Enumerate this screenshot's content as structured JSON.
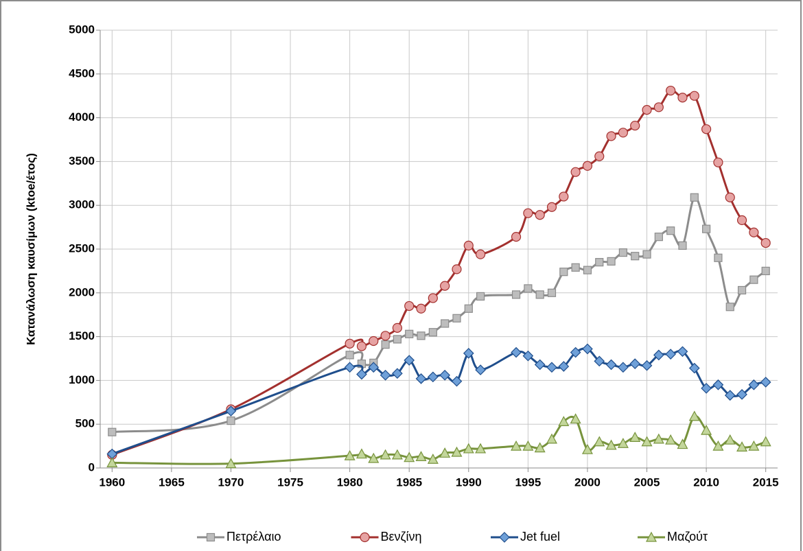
{
  "chart_data": {
    "type": "line",
    "y_label": "Κατανάλωση καυσίμων (ktoe/έτος)",
    "x": [
      1960,
      1970,
      1980,
      1981,
      1982,
      1983,
      1984,
      1985,
      1986,
      1987,
      1988,
      1989,
      1990,
      1991,
      1994,
      1995,
      1996,
      1997,
      1998,
      1999,
      2000,
      2001,
      2002,
      2003,
      2004,
      2005,
      2006,
      2007,
      2008,
      2009,
      2010,
      2011,
      2012,
      2013,
      2014,
      2015
    ],
    "xlim": [
      1959,
      2016
    ],
    "xticks": [
      1960,
      1965,
      1970,
      1975,
      1980,
      1985,
      1990,
      1995,
      2000,
      2005,
      2010,
      2015
    ],
    "ylim": [
      0,
      5000
    ],
    "yticks": [
      0,
      500,
      1000,
      1500,
      2000,
      2500,
      3000,
      3500,
      4000,
      4500,
      5000
    ],
    "grid": true,
    "legend": "bottom",
    "series": [
      {
        "name": "Πετρέλαιο",
        "color": "#8c8c8c",
        "marker": "square",
        "marker_fill": "#bdbdbd",
        "values": [
          410,
          540,
          1290,
          1190,
          1200,
          1410,
          1470,
          1530,
          1510,
          1550,
          1650,
          1710,
          1820,
          1960,
          1980,
          2050,
          1980,
          2000,
          2240,
          2290,
          2260,
          2350,
          2360,
          2460,
          2420,
          2440,
          2640,
          2710,
          2540,
          3090,
          2730,
          2400,
          1840,
          2030,
          2150,
          2250
        ]
      },
      {
        "name": "Βενζίνη",
        "color": "#a3302e",
        "marker": "circle",
        "marker_fill": "#e6a3a3",
        "values": [
          150,
          670,
          1420,
          1390,
          1450,
          1510,
          1600,
          1850,
          1820,
          1940,
          2080,
          2270,
          2540,
          2440,
          2640,
          2910,
          2890,
          2980,
          3100,
          3380,
          3450,
          3560,
          3790,
          3830,
          3910,
          4090,
          4120,
          4310,
          4230,
          4250,
          3870,
          3490,
          3090,
          2830,
          2690,
          2570
        ]
      },
      {
        "name": "Jet fuel",
        "color": "#1f4e8c",
        "marker": "diamond",
        "marker_fill": "#6fa0d8",
        "values": [
          160,
          650,
          1150,
          1070,
          1150,
          1060,
          1080,
          1230,
          1020,
          1040,
          1060,
          990,
          1310,
          1120,
          1320,
          1280,
          1180,
          1150,
          1160,
          1320,
          1360,
          1220,
          1180,
          1150,
          1190,
          1170,
          1290,
          1300,
          1330,
          1140,
          910,
          950,
          830,
          840,
          950,
          980
        ]
      },
      {
        "name": "Μαζούτ",
        "color": "#77933c",
        "marker": "triangle",
        "marker_fill": "#c3d69b",
        "values": [
          60,
          50,
          140,
          160,
          110,
          150,
          150,
          120,
          130,
          100,
          170,
          180,
          220,
          220,
          250,
          250,
          230,
          330,
          530,
          560,
          210,
          300,
          260,
          280,
          350,
          300,
          330,
          320,
          270,
          590,
          430,
          250,
          320,
          240,
          250,
          300
        ]
      }
    ]
  }
}
